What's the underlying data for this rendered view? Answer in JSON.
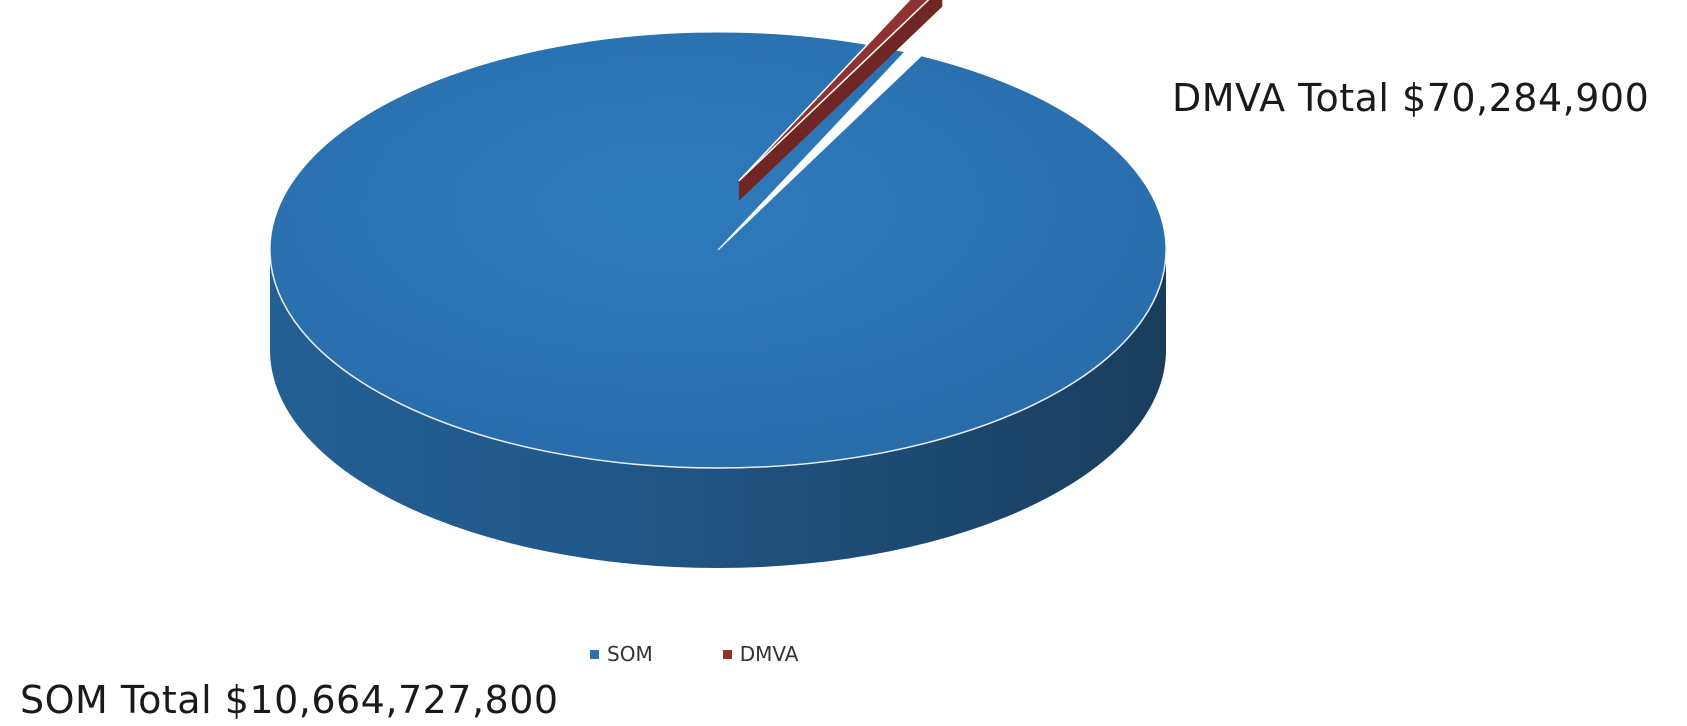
{
  "chart_data": {
    "type": "pie",
    "style": "3d",
    "categories": [
      "SOM",
      "DMVA"
    ],
    "values": [
      10664727800,
      70284900
    ],
    "colors": [
      "#2a72b2",
      "#8e3330"
    ],
    "labels": [
      "SOM Total $10,664,727,800",
      "DMVA Total $70,284,900"
    ],
    "legend": {
      "position": "bottom",
      "items": [
        {
          "name": "SOM",
          "color": "#2a72b2"
        },
        {
          "name": "DMVA",
          "color": "#8e3330"
        }
      ]
    },
    "exploded": "DMVA"
  }
}
